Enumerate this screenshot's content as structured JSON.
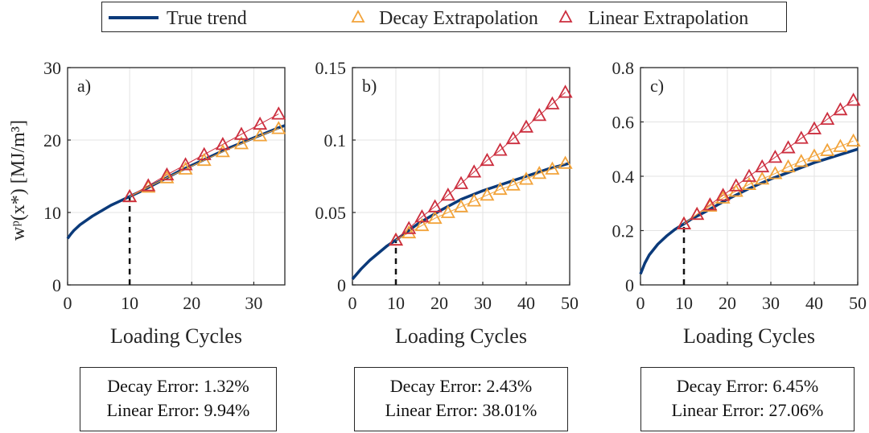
{
  "legend": {
    "true_label": "True trend",
    "decay_label": "Decay Extrapolation",
    "linear_label": "Linear Extrapolation"
  },
  "colors": {
    "true": "#0b3a7a",
    "decay": "#f2a33a",
    "linear": "#cc2e3e",
    "grid": "#e3e3e3",
    "axis": "#262626"
  },
  "ylabel": "wᵖ(x*) [MJ/m³]",
  "chart_data": [
    {
      "type": "line",
      "panel_label": "a)",
      "xlabel": "Loading Cycles",
      "xlim": [
        0,
        35
      ],
      "ylim": [
        0,
        30
      ],
      "xticks": [
        0,
        10,
        20,
        30
      ],
      "yticks": [
        0,
        10,
        20,
        30
      ],
      "ytick_labels": [
        "0",
        "10",
        "20",
        "30"
      ],
      "marker_x": 10,
      "true_trend": {
        "x": [
          0,
          0.5,
          1,
          2,
          3,
          4,
          5,
          6,
          7,
          8,
          9,
          10,
          12,
          14,
          16,
          18,
          20,
          22,
          24,
          26,
          28,
          30,
          32,
          34,
          35
        ],
        "y": [
          6.4,
          7.0,
          7.5,
          8.3,
          8.9,
          9.5,
          10.0,
          10.5,
          11.0,
          11.4,
          11.8,
          12.2,
          13.0,
          13.9,
          14.8,
          15.7,
          16.5,
          17.3,
          18.1,
          18.9,
          19.6,
          20.3,
          21.0,
          21.7,
          22.0
        ]
      },
      "decay": {
        "x": [
          10,
          13,
          16,
          19,
          22,
          25,
          28,
          31,
          34
        ],
        "y": [
          12.2,
          13.5,
          14.8,
          16.0,
          17.2,
          18.4,
          19.5,
          20.6,
          21.6
        ]
      },
      "linear": {
        "x": [
          10,
          13,
          16,
          19,
          22,
          25,
          28,
          31,
          34
        ],
        "y": [
          12.2,
          13.7,
          15.2,
          16.6,
          18.0,
          19.4,
          20.8,
          22.2,
          23.6
        ]
      },
      "errors": {
        "decay": "Decay Error: 1.32%",
        "linear": "Linear Error: 9.94%"
      }
    },
    {
      "type": "line",
      "panel_label": "b)",
      "xlabel": "Loading Cycles",
      "xlim": [
        0,
        50
      ],
      "ylim": [
        0,
        0.15
      ],
      "xticks": [
        0,
        10,
        20,
        30,
        40,
        50
      ],
      "yticks": [
        0,
        0.05,
        0.1,
        0.15
      ],
      "ytick_labels": [
        "0",
        "0.05",
        "0.1",
        "0.15"
      ],
      "marker_x": 10,
      "true_trend": {
        "x": [
          0,
          2,
          4,
          6,
          8,
          10,
          15,
          20,
          25,
          30,
          35,
          40,
          45,
          50
        ],
        "y": [
          0.004,
          0.011,
          0.017,
          0.022,
          0.027,
          0.031,
          0.042,
          0.051,
          0.059,
          0.065,
          0.07,
          0.075,
          0.08,
          0.084
        ]
      },
      "decay": {
        "x": [
          10,
          13,
          16,
          19,
          22,
          25,
          28,
          31,
          34,
          37,
          40,
          43,
          46,
          49
        ],
        "y": [
          0.031,
          0.036,
          0.041,
          0.046,
          0.05,
          0.054,
          0.058,
          0.062,
          0.066,
          0.069,
          0.073,
          0.077,
          0.08,
          0.084
        ]
      },
      "linear": {
        "x": [
          10,
          13,
          16,
          19,
          22,
          25,
          28,
          31,
          34,
          37,
          40,
          43,
          46,
          49
        ],
        "y": [
          0.031,
          0.039,
          0.047,
          0.054,
          0.062,
          0.07,
          0.078,
          0.086,
          0.093,
          0.101,
          0.109,
          0.117,
          0.125,
          0.133
        ]
      },
      "errors": {
        "decay": "Decay Error: 2.43%",
        "linear": "Linear Error: 38.01%"
      }
    },
    {
      "type": "line",
      "panel_label": "c)",
      "xlabel": "Loading Cycles",
      "xlim": [
        0,
        50
      ],
      "ylim": [
        0,
        0.8
      ],
      "xticks": [
        0,
        10,
        20,
        30,
        40,
        50
      ],
      "yticks": [
        0,
        0.2,
        0.4,
        0.6,
        0.8
      ],
      "ytick_labels": [
        "0",
        "0.2",
        "0.4",
        "0.6",
        "0.8"
      ],
      "marker_x": 10,
      "true_trend": {
        "x": [
          0,
          1,
          2,
          4,
          6,
          8,
          10,
          12,
          15,
          20,
          25,
          30,
          35,
          40,
          45,
          50
        ],
        "y": [
          0.04,
          0.08,
          0.11,
          0.15,
          0.18,
          0.205,
          0.225,
          0.245,
          0.27,
          0.315,
          0.355,
          0.39,
          0.42,
          0.45,
          0.475,
          0.5
        ]
      },
      "decay": {
        "x": [
          10,
          13,
          16,
          19,
          22,
          25,
          28,
          31,
          34,
          37,
          40,
          43,
          46,
          49
        ],
        "y": [
          0.225,
          0.26,
          0.29,
          0.32,
          0.345,
          0.37,
          0.39,
          0.41,
          0.435,
          0.455,
          0.475,
          0.495,
          0.51,
          0.53
        ]
      },
      "linear": {
        "x": [
          10,
          13,
          16,
          19,
          22,
          25,
          28,
          31,
          34,
          37,
          40,
          43,
          46,
          49
        ],
        "y": [
          0.225,
          0.26,
          0.295,
          0.33,
          0.365,
          0.4,
          0.435,
          0.47,
          0.505,
          0.54,
          0.575,
          0.61,
          0.645,
          0.68
        ]
      },
      "errors": {
        "decay": "Decay Error: 6.45%",
        "linear": "Linear Error: 27.06%"
      }
    }
  ]
}
